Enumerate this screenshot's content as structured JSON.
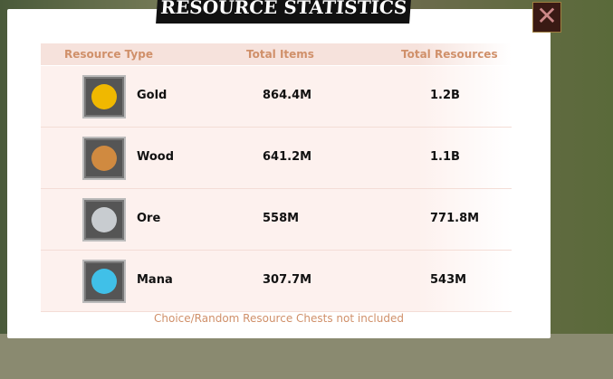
{
  "title": "RESOURCE STATISTICS",
  "close_icon": "close-x-icon",
  "headers": {
    "type": "Resource Type",
    "items": "Total Items",
    "resources": "Total Resources"
  },
  "rows": [
    {
      "name": "Gold",
      "items": "864.4M",
      "resources": "1.2B",
      "icon": "gold-coin-icon",
      "color": "#f0b800"
    },
    {
      "name": "Wood",
      "items": "641.2M",
      "resources": "1.1B",
      "icon": "wood-planks-icon",
      "color": "#d08a40"
    },
    {
      "name": "Ore",
      "items": "558M",
      "resources": "771.8M",
      "icon": "ore-icon",
      "color": "#c8ccd0"
    },
    {
      "name": "Mana",
      "items": "307.7M",
      "resources": "543M",
      "icon": "mana-potion-icon",
      "color": "#40c0e8"
    }
  ],
  "note": "Choice/Random Resource Chests not included"
}
